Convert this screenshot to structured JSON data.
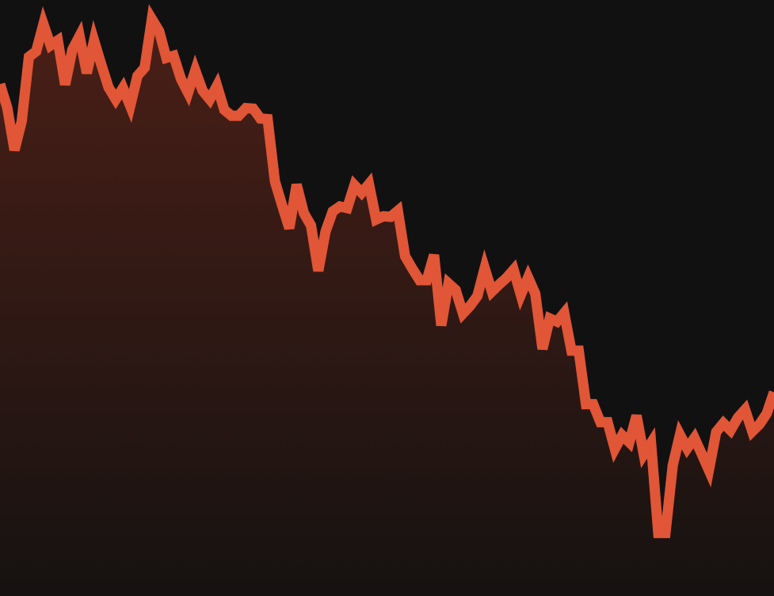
{
  "colors": {
    "background": "#111111",
    "line": "#e05636",
    "fill_top": "#4a1f17",
    "fill_bottom": "#161211"
  },
  "chart_data": {
    "type": "area",
    "title": "",
    "xlabel": "",
    "ylabel": "",
    "grid": false,
    "legend": "none",
    "ylim": [
      0,
      1
    ],
    "values": [
      0.875,
      0.832,
      0.754,
      0.807,
      0.925,
      0.935,
      0.985,
      0.946,
      0.955,
      0.874,
      0.938,
      0.963,
      0.895,
      0.955,
      0.911,
      0.869,
      0.847,
      0.868,
      0.835,
      0.89,
      0.905,
      0.994,
      0.972,
      0.923,
      0.927,
      0.885,
      0.859,
      0.9,
      0.863,
      0.847,
      0.872,
      0.828,
      0.817,
      0.817,
      0.831,
      0.83,
      0.812,
      0.811,
      0.697,
      0.653,
      0.611,
      0.691,
      0.639,
      0.616,
      0.533,
      0.605,
      0.642,
      0.651,
      0.648,
      0.69,
      0.676,
      0.692,
      0.627,
      0.633,
      0.632,
      0.643,
      0.56,
      0.537,
      0.516,
      0.516,
      0.562,
      0.433,
      0.51,
      0.498,
      0.455,
      0.469,
      0.487,
      0.538,
      0.495,
      0.508,
      0.52,
      0.535,
      0.489,
      0.521,
      0.491,
      0.39,
      0.446,
      0.44,
      0.456,
      0.387,
      0.387,
      0.289,
      0.289,
      0.256,
      0.256,
      0.207,
      0.232,
      0.219,
      0.268,
      0.197,
      0.218,
      0.053,
      0.053,
      0.177,
      0.233,
      0.208,
      0.227,
      0.198,
      0.168,
      0.238,
      0.254,
      0.241,
      0.264,
      0.279,
      0.239,
      0.252,
      0.272,
      0.311
    ]
  }
}
